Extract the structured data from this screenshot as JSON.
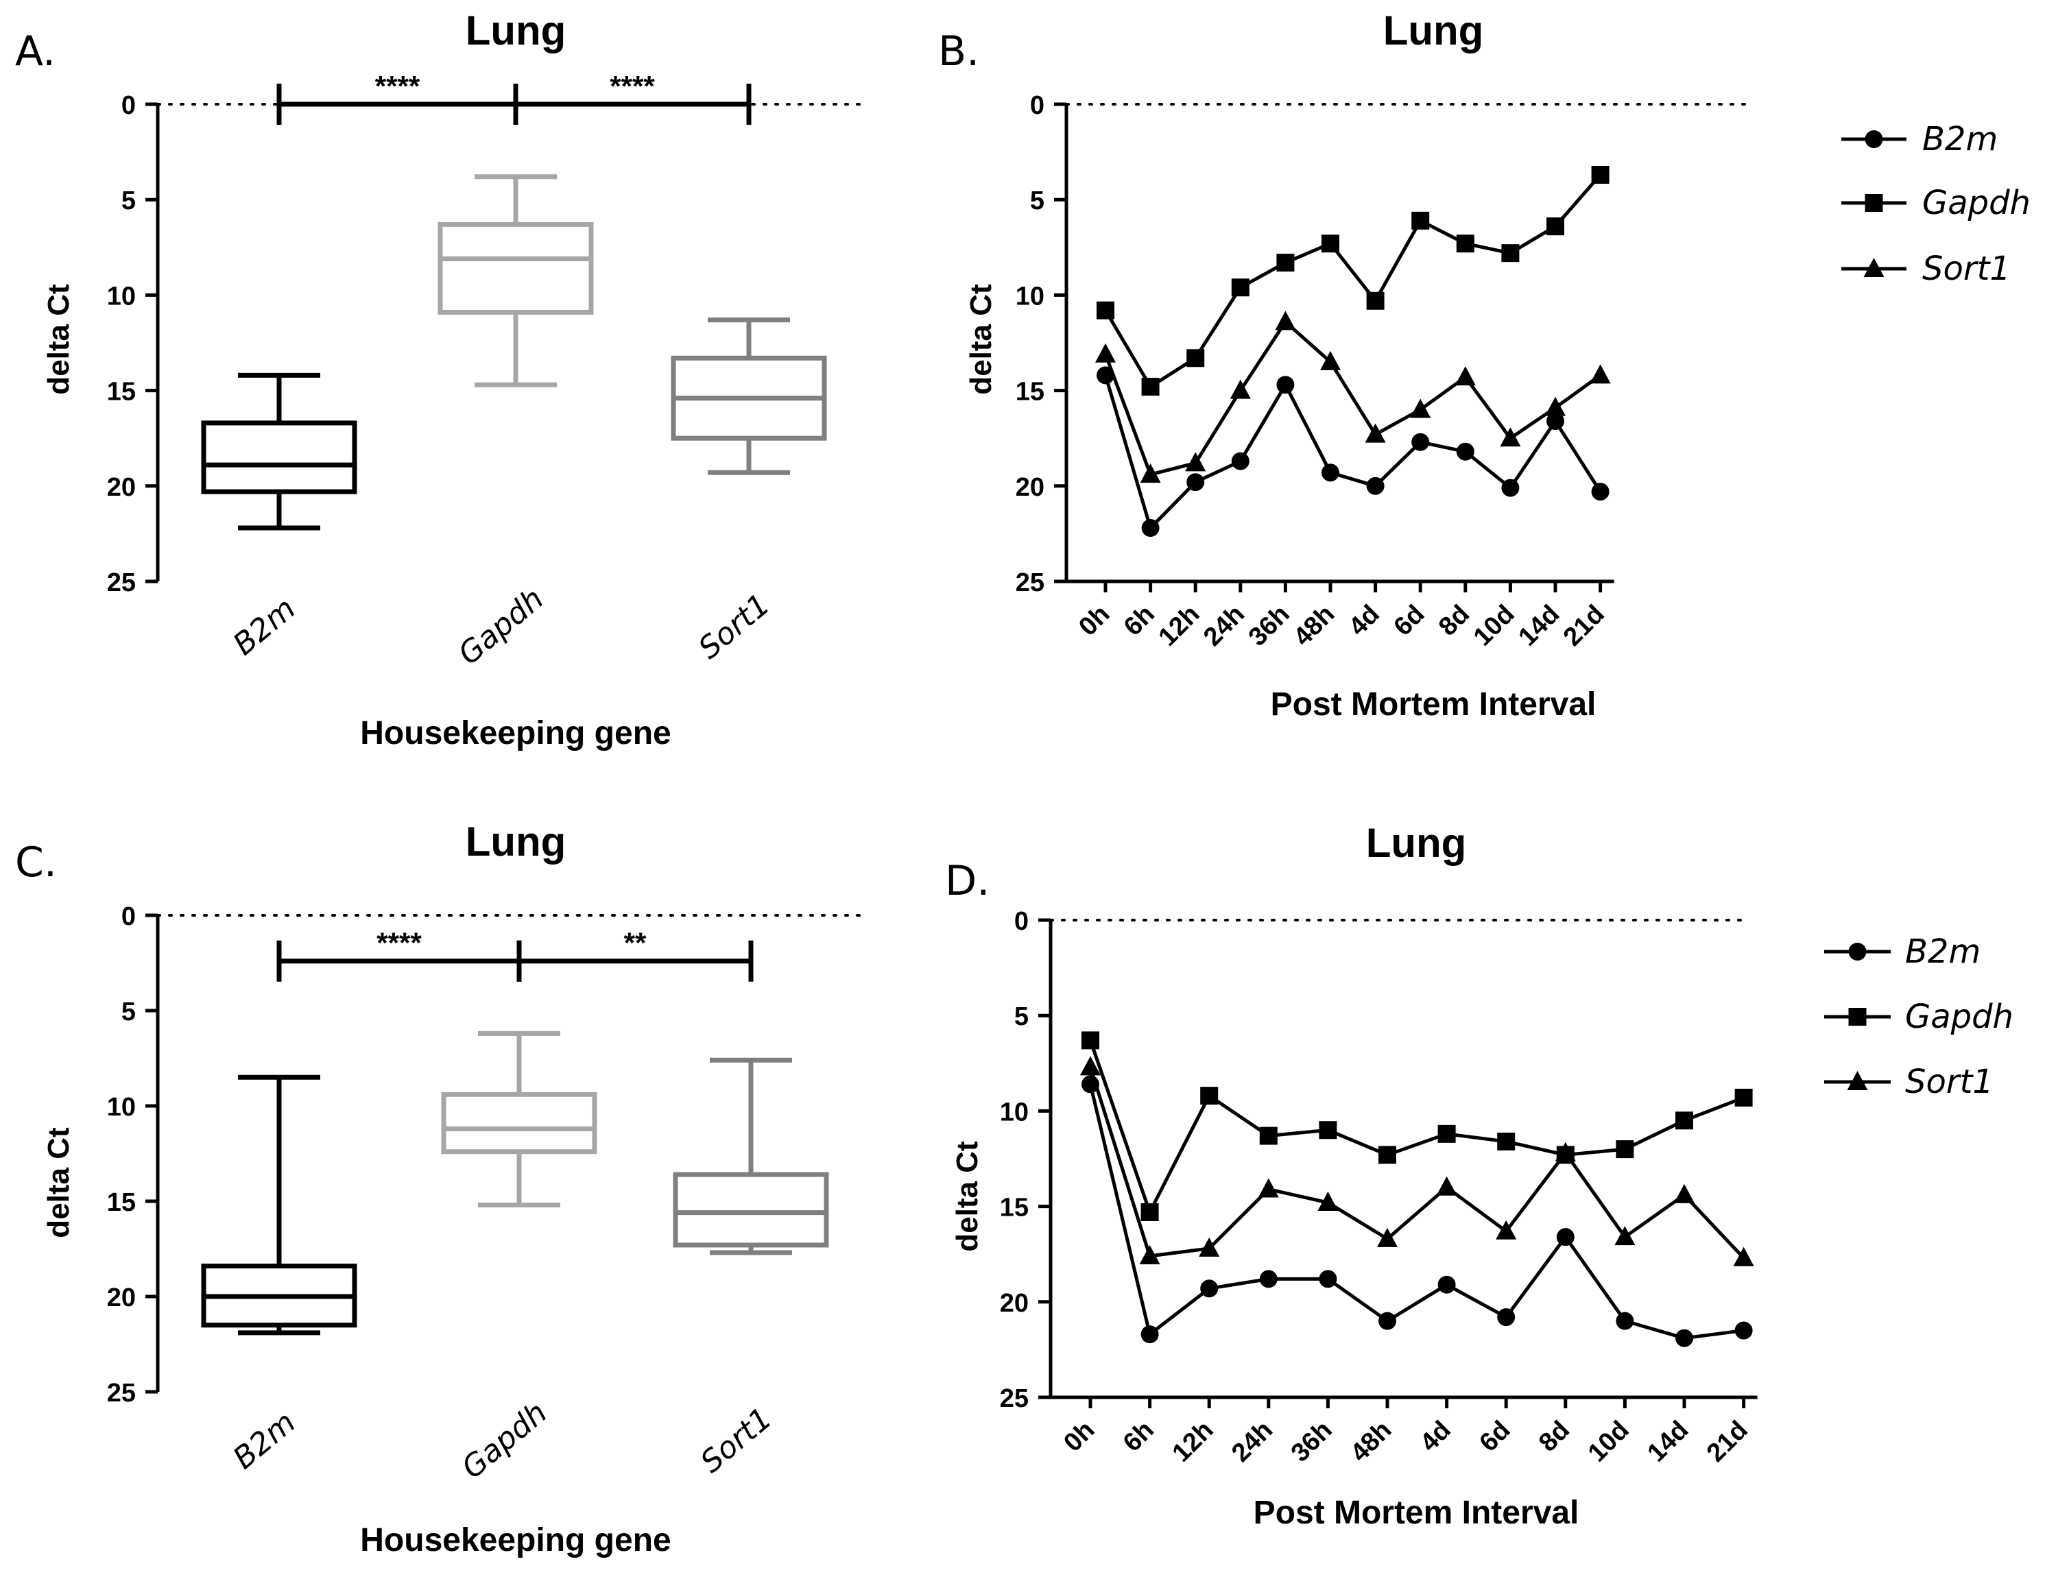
{
  "chart_data": [
    {
      "panel": "A.",
      "type": "box",
      "title": "Lung",
      "xlabel": "Housekeeping gene",
      "ylabel": "delta Ct",
      "ylim": [
        0,
        25
      ],
      "y_inverted": true,
      "yticks": [
        0,
        5,
        10,
        15,
        20,
        25
      ],
      "categories": [
        "B2m",
        "Gapdh",
        "Sort1"
      ],
      "colors": [
        "#000000",
        "#a6a6a6",
        "#7f7f7f"
      ],
      "boxes": [
        {
          "min": 14.2,
          "q1": 16.7,
          "median": 18.9,
          "q3": 20.3,
          "max": 22.2
        },
        {
          "min": 3.8,
          "q1": 6.3,
          "median": 8.1,
          "q3": 10.9,
          "max": 14.7
        },
        {
          "min": 11.3,
          "q1": 13.3,
          "median": 15.4,
          "q3": 17.5,
          "max": 19.3
        }
      ],
      "brackets": [
        {
          "from": 0,
          "to": 1,
          "y": 0,
          "label": "****"
        },
        {
          "from": 1,
          "to": 2,
          "y": 0,
          "label": "****"
        }
      ]
    },
    {
      "panel": "B.",
      "type": "line",
      "title": "Lung",
      "xlabel": "Post Mortem Interval",
      "ylabel": "delta Ct",
      "ylim": [
        0,
        25
      ],
      "y_inverted": true,
      "yticks": [
        0,
        5,
        10,
        15,
        20,
        25
      ],
      "categories": [
        "0h",
        "6h",
        "12h",
        "24h",
        "36h",
        "48h",
        "4d",
        "6d",
        "8d",
        "10d",
        "14d",
        "21d"
      ],
      "series": [
        {
          "name": "B2m",
          "marker": "circle",
          "values": [
            14.2,
            22.2,
            19.8,
            18.7,
            14.7,
            19.3,
            20.0,
            17.7,
            18.2,
            20.1,
            16.6,
            20.3
          ]
        },
        {
          "name": "Gapdh",
          "marker": "square",
          "values": [
            10.8,
            14.8,
            13.3,
            9.6,
            8.3,
            7.3,
            10.3,
            6.1,
            7.3,
            7.8,
            6.4,
            3.7
          ]
        },
        {
          "name": "Sort1",
          "marker": "triangle",
          "values": [
            13.1,
            19.4,
            18.8,
            15.0,
            11.4,
            13.5,
            17.3,
            16.0,
            14.3,
            17.5,
            15.9,
            14.2
          ]
        }
      ]
    },
    {
      "panel": "C.",
      "type": "box",
      "title": "Lung",
      "xlabel": "Housekeeping gene",
      "ylabel": "delta Ct",
      "ylim": [
        0,
        25
      ],
      "y_inverted": true,
      "yticks": [
        0,
        5,
        10,
        15,
        20,
        25
      ],
      "categories": [
        "B2m",
        "Gapdh",
        "Sort1"
      ],
      "colors": [
        "#000000",
        "#a6a6a6",
        "#7f7f7f"
      ],
      "boxes": [
        {
          "min": 8.5,
          "q1": 18.4,
          "median": 20.0,
          "q3": 21.5,
          "max": 21.9
        },
        {
          "min": 6.2,
          "q1": 9.4,
          "median": 11.2,
          "q3": 12.4,
          "max": 15.2
        },
        {
          "min": 7.6,
          "q1": 13.6,
          "median": 15.6,
          "q3": 17.3,
          "max": 17.7
        }
      ],
      "brackets": [
        {
          "from": 0,
          "to": 1,
          "y": 2.4,
          "label": "****"
        },
        {
          "from": 1,
          "to": 2,
          "y": 2.4,
          "label": "**"
        }
      ]
    },
    {
      "panel": "D.",
      "type": "line",
      "title": "Lung",
      "xlabel": "Post Mortem Interval",
      "ylabel": "delta Ct",
      "ylim": [
        0,
        25
      ],
      "y_inverted": true,
      "yticks": [
        0,
        5,
        10,
        15,
        20,
        25
      ],
      "categories": [
        "0h",
        "6h",
        "12h",
        "24h",
        "36h",
        "48h",
        "4d",
        "6d",
        "8d",
        "10d",
        "14d",
        "21d"
      ],
      "series": [
        {
          "name": "B2m",
          "marker": "circle",
          "values": [
            8.6,
            21.7,
            19.3,
            18.8,
            18.8,
            21.0,
            19.1,
            20.8,
            16.6,
            21.0,
            21.9,
            21.5
          ]
        },
        {
          "name": "Gapdh",
          "marker": "square",
          "values": [
            6.3,
            15.3,
            9.2,
            11.3,
            11.0,
            12.3,
            11.2,
            11.6,
            12.3,
            12.0,
            10.5,
            9.3
          ]
        },
        {
          "name": "Sort1",
          "marker": "triangle",
          "values": [
            7.7,
            17.6,
            17.2,
            14.1,
            14.8,
            16.7,
            14.0,
            16.3,
            12.2,
            16.6,
            14.4,
            17.7
          ]
        }
      ]
    }
  ]
}
